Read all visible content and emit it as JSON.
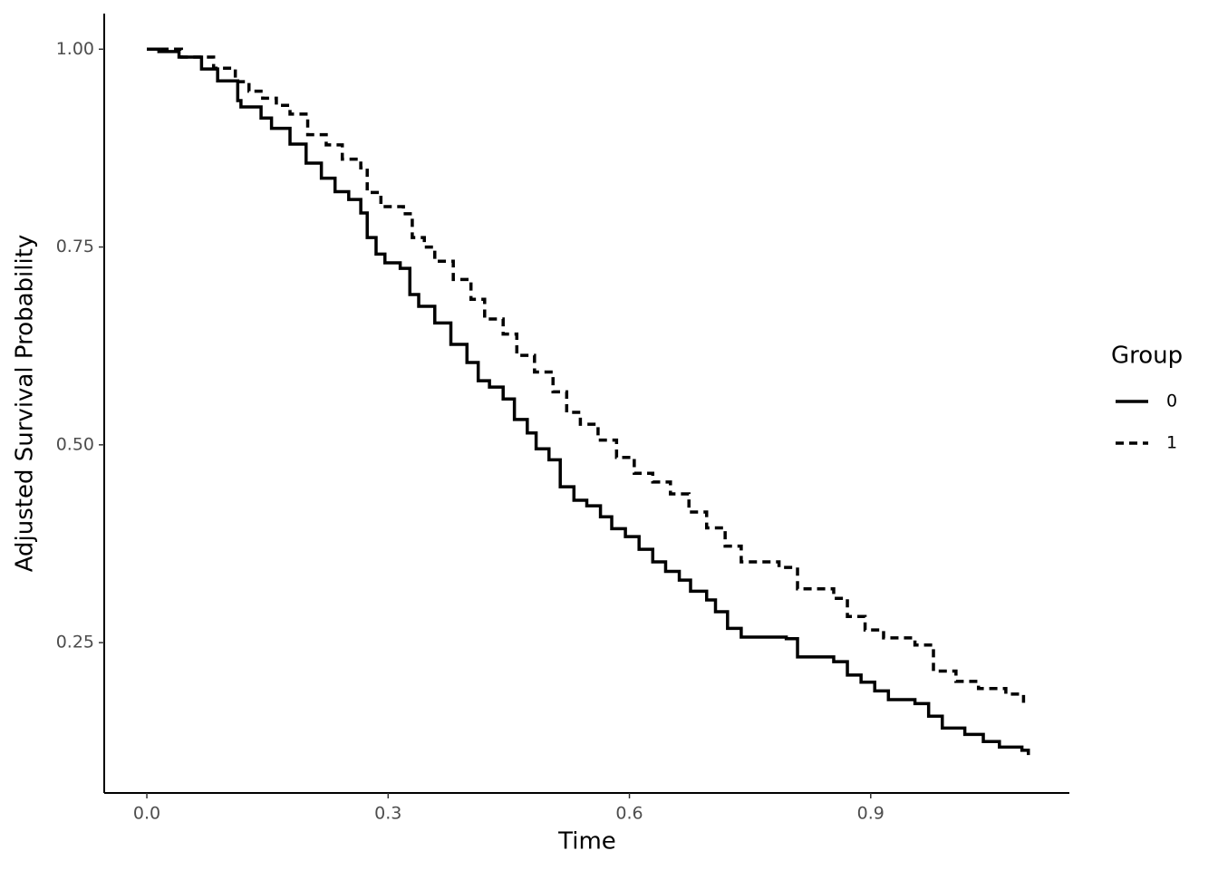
{
  "chart_data": {
    "type": "line",
    "step": true,
    "x_label": "Time",
    "y_label": "Adjusted Survival Probability",
    "legend_title": "Group",
    "legend_position": "right",
    "xlim": [
      -0.053,
      1.147
    ],
    "ylim": [
      0.06,
      1.045
    ],
    "xticks": [
      {
        "value": 0,
        "label": "0.0"
      },
      0.3,
      0.6,
      0.9
    ],
    "yticks": [
      {
        "value": 0.25,
        "label": "0.25"
      },
      {
        "value": 0.5,
        "label": "0.50"
      },
      0.75,
      {
        "value": 1,
        "label": "1.00"
      }
    ],
    "series": [
      {
        "name": "0",
        "color": "#000000",
        "dash": "solid",
        "x": [
          0,
          0.015,
          0.04,
          0.068,
          0.088,
          0.113,
          0.117,
          0.142,
          0.155,
          0.178,
          0.198,
          0.217,
          0.234,
          0.251,
          0.266,
          0.274,
          0.285,
          0.296,
          0.315,
          0.327,
          0.338,
          0.358,
          0.378,
          0.398,
          0.412,
          0.426,
          0.443,
          0.457,
          0.473,
          0.484,
          0.5,
          0.514,
          0.531,
          0.547,
          0.564,
          0.578,
          0.595,
          0.612,
          0.629,
          0.645,
          0.662,
          0.676,
          0.696,
          0.707,
          0.722,
          0.739,
          0.795,
          0.809,
          0.854,
          0.871,
          0.888,
          0.905,
          0.922,
          0.955,
          0.972,
          0.989,
          1.017,
          1.04,
          1.06,
          1.088,
          1.096
        ],
        "values": [
          1,
          0.997,
          0.99,
          0.975,
          0.96,
          0.935,
          0.927,
          0.913,
          0.9,
          0.88,
          0.856,
          0.837,
          0.82,
          0.81,
          0.793,
          0.762,
          0.741,
          0.73,
          0.723,
          0.69,
          0.675,
          0.654,
          0.627,
          0.604,
          0.581,
          0.573,
          0.558,
          0.532,
          0.515,
          0.495,
          0.481,
          0.447,
          0.43,
          0.423,
          0.409,
          0.394,
          0.384,
          0.368,
          0.352,
          0.34,
          0.329,
          0.315,
          0.304,
          0.289,
          0.268,
          0.257,
          0.255,
          0.232,
          0.226,
          0.209,
          0.2,
          0.189,
          0.178,
          0.173,
          0.157,
          0.142,
          0.134,
          0.125,
          0.118,
          0.114,
          0.108
        ]
      },
      {
        "name": "1",
        "color": "#000000",
        "dash": "dashed",
        "x": [
          0,
          0.043,
          0.083,
          0.11,
          0.127,
          0.144,
          0.161,
          0.178,
          0.2,
          0.223,
          0.243,
          0.266,
          0.274,
          0.291,
          0.319,
          0.33,
          0.345,
          0.358,
          0.381,
          0.403,
          0.42,
          0.443,
          0.46,
          0.482,
          0.505,
          0.522,
          0.539,
          0.561,
          0.584,
          0.606,
          0.629,
          0.651,
          0.674,
          0.696,
          0.719,
          0.739,
          0.786,
          0.809,
          0.854,
          0.871,
          0.893,
          0.916,
          0.955,
          0.978,
          1.006,
          1.034,
          1.068,
          1.09
        ],
        "values": [
          1,
          0.99,
          0.976,
          0.959,
          0.947,
          0.938,
          0.929,
          0.918,
          0.892,
          0.879,
          0.861,
          0.85,
          0.819,
          0.801,
          0.792,
          0.762,
          0.75,
          0.732,
          0.709,
          0.684,
          0.659,
          0.64,
          0.613,
          0.592,
          0.567,
          0.541,
          0.526,
          0.506,
          0.484,
          0.464,
          0.453,
          0.438,
          0.415,
          0.395,
          0.372,
          0.352,
          0.345,
          0.318,
          0.306,
          0.283,
          0.266,
          0.256,
          0.247,
          0.214,
          0.201,
          0.192,
          0.185,
          0.174
        ]
      }
    ]
  }
}
